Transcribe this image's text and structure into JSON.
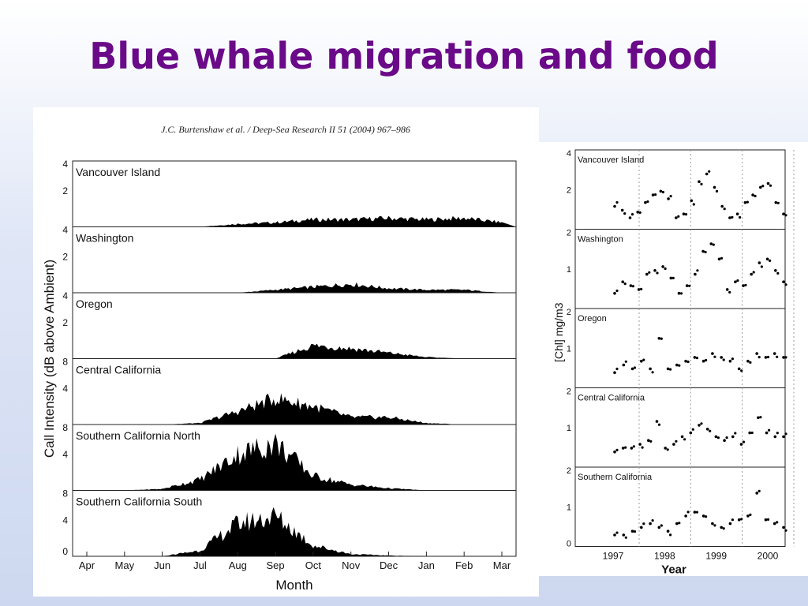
{
  "slide": {
    "title": "Blue whale migration and food"
  },
  "chart_data": [
    {
      "type": "area",
      "citation": "J.C. Burtenshaw et al. / Deep-Sea Research II 51 (2004) 967–986",
      "xlabel": "Month",
      "ylabel": "Call Intensity (dB above Ambient)",
      "categories": [
        "Apr",
        "May",
        "Jun",
        "Jul",
        "Aug",
        "Sep",
        "Oct",
        "Nov",
        "Dec",
        "Jan",
        "Feb",
        "Mar"
      ],
      "series": [
        {
          "name": "Vancouver Island",
          "ylim": [
            0,
            4
          ],
          "yticks": [
            "4",
            "2"
          ],
          "values": [
            0,
            0,
            0,
            0,
            0.2,
            0.3,
            0.5,
            0.5,
            0.6,
            0.5,
            0.6,
            0.3
          ]
        },
        {
          "name": "Washington",
          "ylim": [
            0,
            4
          ],
          "yticks": [
            "4",
            "2"
          ],
          "values": [
            0,
            0,
            0,
            0,
            0,
            0.2,
            0.4,
            0.6,
            0.3,
            0.2,
            0.2,
            0
          ]
        },
        {
          "name": "Oregon",
          "ylim": [
            0,
            4
          ],
          "yticks": [
            "4",
            "2"
          ],
          "values": [
            0,
            0,
            0,
            0,
            0,
            0,
            0.9,
            0.7,
            0.4,
            0.1,
            0,
            0
          ]
        },
        {
          "name": "Central California",
          "ylim": [
            0,
            8
          ],
          "yticks": [
            "8",
            "4"
          ],
          "values": [
            0,
            0,
            0,
            0.2,
            1.8,
            3.6,
            2.5,
            1.0,
            1.0,
            0.2,
            0,
            0
          ]
        },
        {
          "name": "Southern California North",
          "ylim": [
            0,
            8
          ],
          "yticks": [
            "8",
            "4"
          ],
          "values": [
            0,
            0,
            0.2,
            1.5,
            5.0,
            6.5,
            2.0,
            0.8,
            0.3,
            0,
            0,
            0
          ]
        },
        {
          "name": "Southern California South",
          "ylim": [
            0,
            8
          ],
          "yticks": [
            "8",
            "4",
            "0"
          ],
          "values": [
            0,
            0,
            0,
            0.8,
            4.5,
            5.5,
            1.5,
            0.3,
            0.1,
            0,
            0,
            0
          ]
        }
      ]
    },
    {
      "type": "scatter",
      "xlabel": "Year",
      "ylabel": "[Chl] mg/m3",
      "xticks": [
        "1997",
        "1998",
        "1999",
        "2000"
      ],
      "series": [
        {
          "name": "Vancouver Island",
          "ylim": [
            0,
            4
          ],
          "yticks": [
            "4",
            "2"
          ],
          "values": [
            1.2,
            1.0,
            0.6,
            0.9,
            1.4,
            1.8,
            2.0,
            1.6,
            0.6,
            0.8,
            1.5,
            2.5,
            2.9,
            2.2,
            1.2,
            0.6,
            0.8,
            1.4,
            1.8,
            2.2,
            2.4,
            1.4,
            0.8
          ]
        },
        {
          "name": "Washington",
          "ylim": [
            0,
            2
          ],
          "yticks": [
            "2",
            "1"
          ],
          "values": [
            0.4,
            0.7,
            0.6,
            0.5,
            0.9,
            1.0,
            1.1,
            0.8,
            0.4,
            0.6,
            0.9,
            1.5,
            1.7,
            1.3,
            0.5,
            0.7,
            0.6,
            0.9,
            1.2,
            1.3,
            1.0,
            0.7
          ]
        },
        {
          "name": "Oregon",
          "ylim": [
            0,
            2
          ],
          "yticks": [
            "2",
            "1"
          ],
          "values": [
            0.4,
            0.6,
            0.5,
            0.7,
            0.5,
            1.3,
            0.5,
            0.6,
            0.7,
            0.8,
            0.7,
            0.9,
            0.8,
            0.7,
            0.5,
            0.7,
            0.9,
            0.8,
            0.9,
            0.8
          ]
        },
        {
          "name": "Central California",
          "ylim": [
            0,
            2
          ],
          "yticks": [
            "2",
            "1"
          ],
          "values": [
            0.4,
            0.5,
            0.5,
            0.6,
            0.7,
            1.2,
            0.5,
            0.6,
            0.8,
            0.9,
            1.1,
            1.0,
            0.8,
            0.7,
            0.8,
            0.6,
            0.9,
            1.3,
            0.9,
            0.8,
            0.8
          ]
        },
        {
          "name": "Southern California",
          "ylim": [
            0,
            2
          ],
          "yticks": [
            "2",
            "1",
            "0"
          ],
          "values": [
            0.3,
            0.3,
            0.4,
            0.5,
            0.6,
            0.5,
            0.4,
            0.6,
            0.8,
            0.9,
            0.8,
            0.6,
            0.5,
            0.6,
            0.7,
            0.8,
            1.4,
            0.7,
            0.6,
            0.5
          ]
        }
      ]
    }
  ]
}
